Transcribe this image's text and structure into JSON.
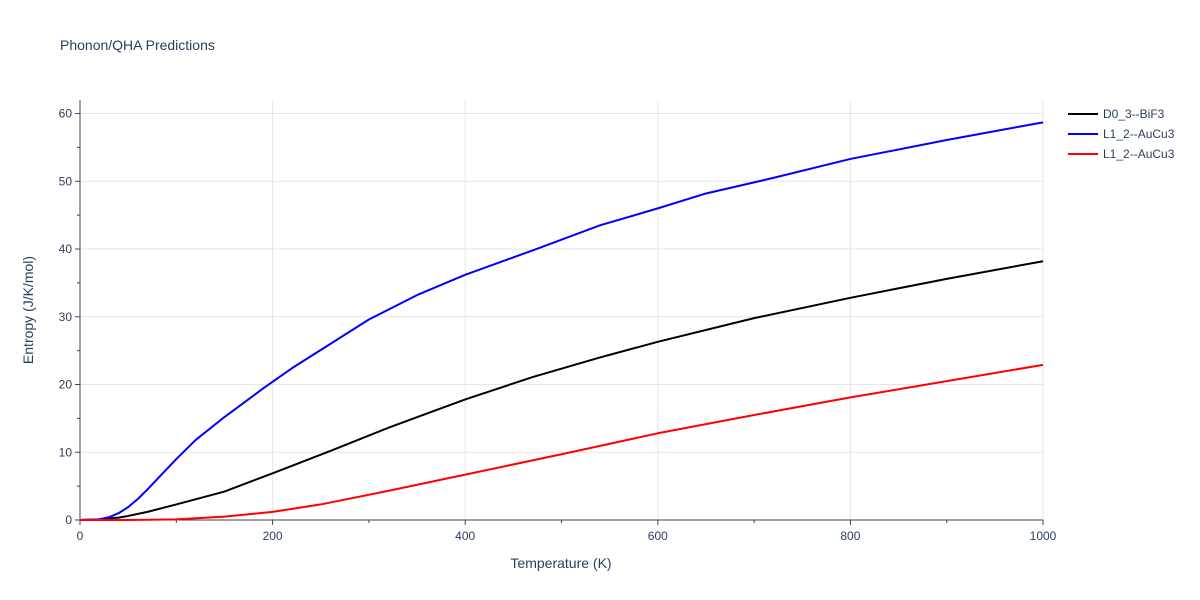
{
  "chart_data": {
    "type": "line",
    "title": "Phonon/QHA Predictions",
    "xlabel": "Temperature (K)",
    "ylabel": "Entropy (J/K/mol)",
    "xlim": [
      0,
      1000
    ],
    "ylim": [
      0,
      62
    ],
    "xticks": [
      0,
      200,
      400,
      600,
      800,
      1000
    ],
    "yticks": [
      0,
      10,
      20,
      30,
      40,
      50,
      60
    ],
    "grid": true,
    "legend_position": "top-right",
    "series": [
      {
        "name": "D0_3--BiF3",
        "color": "#000000",
        "x": [
          0,
          20,
          40,
          50,
          70,
          100,
          150,
          200,
          260,
          320,
          400,
          470,
          540,
          600,
          700,
          800,
          900,
          1000
        ],
        "y": [
          0,
          0.1,
          0.35,
          0.6,
          1.2,
          2.3,
          4.2,
          6.9,
          10.2,
          13.6,
          17.8,
          21.1,
          24.0,
          26.3,
          29.8,
          32.8,
          35.6,
          38.2
        ]
      },
      {
        "name": "L1_2--AuCu3",
        "color": "#0000ff",
        "x": [
          0,
          20,
          30,
          40,
          50,
          60,
          70,
          80,
          100,
          120,
          150,
          190,
          220,
          260,
          300,
          350,
          400,
          470,
          540,
          600,
          650,
          720,
          800,
          900,
          1000
        ],
        "y": [
          0,
          0.1,
          0.4,
          1.0,
          1.9,
          3.1,
          4.5,
          6.0,
          9.0,
          11.8,
          15.2,
          19.4,
          22.4,
          26.0,
          29.6,
          33.2,
          36.2,
          39.8,
          43.5,
          46.0,
          48.2,
          50.5,
          53.3,
          56.1,
          58.7
        ]
      },
      {
        "name": "L1_2--AuCu3",
        "color": "#ff0000",
        "x": [
          0,
          50,
          100,
          150,
          200,
          250,
          320,
          400,
          500,
          600,
          700,
          800,
          900,
          1000
        ],
        "y": [
          0,
          0.0,
          0.1,
          0.5,
          1.2,
          2.3,
          4.3,
          6.7,
          9.7,
          12.8,
          15.5,
          18.1,
          20.5,
          22.9
        ]
      }
    ]
  }
}
